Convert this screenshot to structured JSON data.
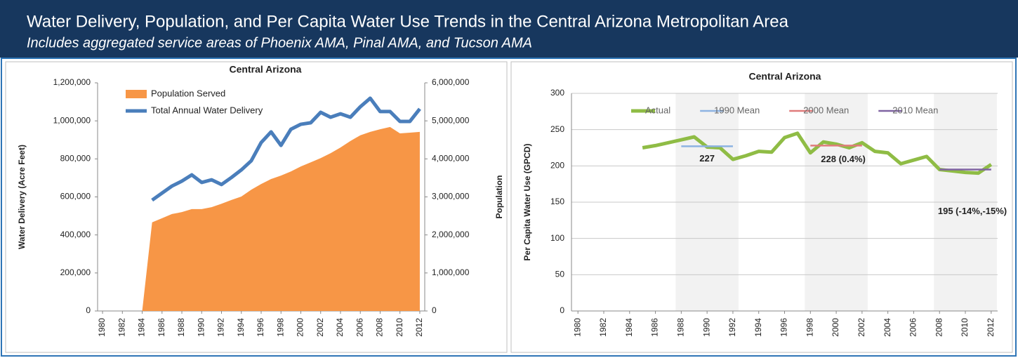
{
  "header": {
    "title": "Water Delivery, Population, and Per Capita Water Use Trends in the Central Arizona Metropolitan Area",
    "subtitle": "Includes aggregated service areas of Phoenix AMA, Pinal AMA, and Tucson AMA"
  },
  "chart_data": [
    {
      "type": "area",
      "title": "Central Arizona",
      "y_label": "Water Delivery  (Acre Feet)",
      "y2_label": "Population",
      "x": [
        1980,
        1981,
        1982,
        1983,
        1984,
        1985,
        1986,
        1987,
        1988,
        1989,
        1990,
        1991,
        1992,
        1993,
        1994,
        1995,
        1996,
        1997,
        1998,
        1999,
        2000,
        2001,
        2002,
        2003,
        2004,
        2005,
        2006,
        2007,
        2008,
        2009,
        2010,
        2011,
        2012
      ],
      "xlim": [
        1979.5,
        2012.5
      ],
      "xticks": [
        1980,
        1982,
        1984,
        1986,
        1988,
        1990,
        1992,
        1994,
        1996,
        1998,
        2000,
        2002,
        2004,
        2006,
        2008,
        2010,
        2012
      ],
      "ylim": [
        0,
        1200000
      ],
      "yticks": [
        0,
        {
          "value": 200000,
          "label": "200,000"
        },
        {
          "value": 400000,
          "label": "400,000"
        },
        {
          "value": 600000,
          "label": "600,000"
        },
        {
          "value": 800000,
          "label": "800,000"
        },
        {
          "value": 1000000,
          "label": "1,000,000"
        },
        {
          "value": 1200000,
          "label": "1,200,000"
        }
      ],
      "y2lim": [
        0,
        6000000
      ],
      "y2ticks": [
        0,
        {
          "value": 1000000,
          "label": "1,000,000"
        },
        {
          "value": 2000000,
          "label": "2,000,000"
        },
        {
          "value": 3000000,
          "label": "3,000,000"
        },
        {
          "value": 4000000,
          "label": "4,000,000"
        },
        {
          "value": 5000000,
          "label": "5,000,000"
        },
        {
          "value": 6000000,
          "label": "6,000,000"
        }
      ],
      "grid": false,
      "legend": "top-left",
      "series": [
        {
          "name": "Population Served",
          "type": "area",
          "axis": "y2",
          "color": "#f79646",
          "values": [
            0,
            0,
            0,
            0,
            0,
            2330000,
            2440000,
            2550000,
            2600000,
            2680000,
            2680000,
            2730000,
            2820000,
            2920000,
            3010000,
            3190000,
            3340000,
            3470000,
            3560000,
            3670000,
            3800000,
            3910000,
            4020000,
            4150000,
            4300000,
            4470000,
            4620000,
            4710000,
            4780000,
            4840000,
            4670000,
            4690000,
            4710000
          ]
        },
        {
          "name": "Total Annual Water Delivery",
          "type": "line",
          "color": "#4a7ebb",
          "values": [
            null,
            null,
            null,
            null,
            null,
            583000,
            620000,
            657000,
            683000,
            716000,
            676000,
            690000,
            665000,
            702000,
            742000,
            790000,
            886000,
            942000,
            871000,
            956000,
            982000,
            990000,
            1045000,
            1019000,
            1037000,
            1019000,
            1074000,
            1119000,
            1049000,
            1049000,
            997000,
            997000,
            1063000
          ]
        }
      ]
    },
    {
      "type": "line",
      "title": "Central Arizona",
      "y_label": "Per Capita Water Use (GPCD)",
      "x": [
        1980,
        1981,
        1982,
        1983,
        1984,
        1985,
        1986,
        1987,
        1988,
        1989,
        1990,
        1991,
        1992,
        1993,
        1994,
        1995,
        1996,
        1997,
        1998,
        1999,
        2000,
        2001,
        2002,
        2003,
        2004,
        2005,
        2006,
        2007,
        2008,
        2009,
        2010,
        2011,
        2012
      ],
      "xlim": [
        1979.5,
        2012.5
      ],
      "xticks": [
        1980,
        1982,
        1984,
        1986,
        1988,
        1990,
        1992,
        1994,
        1996,
        1998,
        2000,
        2002,
        2004,
        2006,
        2008,
        2010,
        2012
      ],
      "ylim": [
        0,
        300
      ],
      "yticks": [
        0,
        50,
        100,
        150,
        200,
        250,
        300
      ],
      "grid": true,
      "legend": "top",
      "series": [
        {
          "name": "Actual",
          "color": "#8fbc45",
          "values": [
            null,
            null,
            null,
            null,
            null,
            225,
            228,
            232,
            236,
            240,
            226,
            225,
            209,
            214,
            220,
            219,
            239,
            245,
            218,
            233,
            230,
            225,
            232,
            220,
            218,
            203,
            208,
            213,
            195,
            193,
            191,
            190,
            202
          ]
        },
        {
          "name": "1990 Mean",
          "color": "#8db3e2",
          "x": [
            1988,
            1992
          ],
          "values": [
            227,
            227
          ]
        },
        {
          "name": "2000 Mean",
          "color": "#e07b7b",
          "x": [
            1998,
            2002
          ],
          "values": [
            228,
            228
          ]
        },
        {
          "name": "2010 Mean",
          "color": "#8064a2",
          "x": [
            2008,
            2012
          ],
          "values": [
            195,
            195
          ]
        }
      ],
      "annotations": [
        "227",
        "228 (0.4%)",
        "195 (-14%,-15%)"
      ]
    }
  ]
}
